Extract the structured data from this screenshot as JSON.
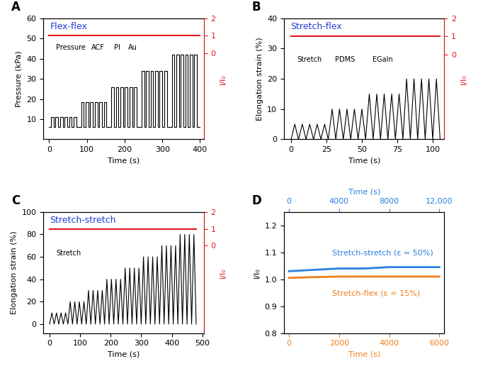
{
  "chart_data": [
    {
      "type": "line",
      "label": "A",
      "title": "Flex-flex",
      "annotations": [
        "Pressure",
        "ACF",
        "PI",
        "Au"
      ],
      "xlabel": "Time (s)",
      "ylabel": "Pressure (kPa)",
      "y2label": "I/I₀",
      "xlim": [
        -15,
        410
      ],
      "xticks": [
        0,
        100,
        200,
        300,
        400
      ],
      "ylim": [
        0,
        60
      ],
      "yticks": [
        10,
        20,
        30,
        40,
        50,
        60
      ],
      "y2lim": [
        -5,
        2
      ],
      "y2ticks": [
        0,
        1,
        2
      ],
      "series": [
        {
          "color": "#000000",
          "x": [
            0,
            5,
            5,
            12,
            12,
            17,
            17,
            24,
            24,
            29,
            29,
            36,
            36,
            41,
            41,
            48,
            48,
            53,
            53,
            60,
            60,
            65,
            65,
            72,
            72,
            85,
            85,
            92,
            92,
            97,
            97,
            104,
            104,
            109,
            109,
            116,
            116,
            121,
            121,
            128,
            128,
            133,
            133,
            140,
            140,
            145,
            145,
            152,
            152,
            165,
            165,
            172,
            172,
            177,
            177,
            184,
            184,
            189,
            189,
            196,
            196,
            201,
            201,
            208,
            208,
            213,
            213,
            220,
            220,
            225,
            225,
            232,
            232,
            245,
            245,
            252,
            252,
            257,
            257,
            264,
            264,
            269,
            269,
            276,
            276,
            281,
            281,
            288,
            288,
            293,
            293,
            300,
            300,
            305,
            305,
            312,
            312,
            325,
            325,
            332,
            332,
            337,
            337,
            344,
            344,
            349,
            349,
            356,
            356,
            361,
            361,
            368,
            368,
            373,
            373,
            380,
            380,
            385,
            385,
            392,
            392,
            400
          ],
          "values": [
            6,
            6,
            11,
            11,
            6,
            6,
            11,
            11,
            6,
            6,
            11,
            11,
            6,
            6,
            11,
            11,
            6,
            6,
            11,
            11,
            6,
            6,
            11,
            11,
            6,
            6,
            18.5,
            18.5,
            6,
            6,
            18.5,
            18.5,
            6,
            6,
            18.5,
            18.5,
            6,
            6,
            18.5,
            18.5,
            6,
            6,
            18.5,
            18.5,
            6,
            6,
            18.5,
            18.5,
            6,
            6,
            26,
            26,
            6,
            6,
            26,
            26,
            6,
            6,
            26,
            26,
            6,
            6,
            26,
            26,
            6,
            6,
            26,
            26,
            6,
            6,
            26,
            26,
            6,
            6,
            34,
            34,
            6,
            6,
            34,
            34,
            6,
            6,
            34,
            34,
            6,
            6,
            34,
            34,
            6,
            6,
            34,
            34,
            6,
            6,
            34,
            34,
            6,
            6,
            42,
            42,
            6,
            6,
            42,
            42,
            6,
            6,
            42,
            42,
            6,
            6,
            42,
            42,
            6,
            6,
            42,
            42,
            6,
            6,
            42,
            42,
            6,
            6
          ]
        },
        {
          "color": "#e31a1c",
          "axis": "y2",
          "x": [
            0,
            100,
            200,
            300,
            400
          ],
          "values": [
            1.0,
            1.0,
            1.0,
            1.0,
            1.0
          ]
        }
      ]
    },
    {
      "type": "line",
      "label": "B",
      "title": "Stretch-flex",
      "annotations": [
        "Stretch",
        "PDMS",
        "EGaIn"
      ],
      "xlabel": "Time (s)",
      "ylabel": "Elongation strain (%)",
      "y2label": "I/I₀",
      "xlim": [
        -5,
        108
      ],
      "xticks": [
        0,
        25,
        50,
        75,
        100
      ],
      "ylim": [
        0,
        40
      ],
      "yticks": [
        0,
        10,
        20,
        30,
        40
      ],
      "y2lim": [
        -4.7,
        2
      ],
      "y2ticks": [
        0,
        1,
        2
      ],
      "series": [
        {
          "color": "#000000",
          "x": [
            0,
            2.6,
            5.2,
            7.9,
            10.5,
            13.1,
            15.8,
            18.4,
            21,
            23.6,
            26.2,
            28.9,
            31.5,
            34.1,
            36.8,
            39.4,
            42,
            44.6,
            47.2,
            49.9,
            52.5,
            55.1,
            57.8,
            60.4,
            63,
            65.6,
            68.2,
            70.9,
            73.5,
            76.1,
            78.8,
            81.4,
            84,
            86.6,
            89.2,
            91.9,
            94.5,
            97.1,
            99.8,
            102.4,
            105
          ],
          "values": [
            0,
            5,
            0,
            5,
            0,
            5,
            0,
            5,
            0,
            5,
            0,
            10,
            0,
            10,
            0,
            10,
            0,
            10,
            0,
            10,
            0,
            15,
            0,
            15,
            0,
            15,
            0,
            15,
            0,
            15,
            0,
            20,
            0,
            20,
            0,
            20,
            0,
            20,
            0,
            20,
            0
          ]
        },
        {
          "color": "#e31a1c",
          "axis": "y2",
          "x": [
            0,
            25,
            50,
            75,
            105
          ],
          "values": [
            1.0,
            1.0,
            1.0,
            1.0,
            1.0
          ]
        }
      ]
    },
    {
      "type": "line",
      "label": "C",
      "title": "Stretch-stretch",
      "annotations": [
        "Stretch"
      ],
      "xlabel": "Time (s)",
      "ylabel": "Elongation strain (%)",
      "y2label": "I/I₀",
      "xlim": [
        -20,
        505
      ],
      "xticks": [
        0,
        100,
        200,
        300,
        400,
        500
      ],
      "ylim": [
        -8,
        100
      ],
      "yticks": [
        0,
        20,
        40,
        60,
        80,
        100
      ],
      "y2lim": [
        -5.2,
        2
      ],
      "y2ticks": [
        0,
        1,
        2
      ],
      "series": [
        {
          "color": "#000000",
          "x": [
            0,
            7.5,
            15,
            22.5,
            30,
            37.5,
            45,
            52.5,
            60,
            67.5,
            75,
            82.5,
            90,
            97.5,
            105,
            112.5,
            120,
            127.5,
            135,
            142.5,
            150,
            157.5,
            165,
            172.5,
            180,
            187.5,
            195,
            202.5,
            210,
            217.5,
            225,
            232.5,
            240,
            247.5,
            255,
            262.5,
            270,
            277.5,
            285,
            292.5,
            300,
            307.5,
            315,
            322.5,
            330,
            337.5,
            345,
            352.5,
            360,
            367.5,
            375,
            382.5,
            390,
            397.5,
            405,
            412.5,
            420,
            427.5,
            435,
            442.5,
            450,
            457.5,
            465,
            472.5,
            480
          ],
          "values": [
            0,
            10,
            0,
            10,
            0,
            10,
            0,
            10,
            0,
            20,
            0,
            20,
            0,
            20,
            0,
            20,
            0,
            30,
            0,
            30,
            0,
            30,
            0,
            30,
            0,
            40,
            0,
            40,
            0,
            40,
            0,
            40,
            0,
            50,
            0,
            50,
            0,
            50,
            0,
            50,
            0,
            60,
            0,
            60,
            0,
            60,
            0,
            60,
            0,
            70,
            0,
            70,
            0,
            70,
            0,
            70,
            0,
            80,
            0,
            80,
            0,
            80,
            0,
            80,
            0
          ]
        },
        {
          "color": "#e31a1c",
          "axis": "y2",
          "x": [
            0,
            120,
            240,
            360,
            480
          ],
          "values": [
            1.0,
            1.0,
            1.0,
            1.0,
            1.0
          ]
        }
      ]
    },
    {
      "type": "line",
      "label": "D",
      "xlabel": "Time (s)",
      "x2label": "Time (s)",
      "ylabel": "I/I₀",
      "xlim": [
        -200,
        6200
      ],
      "xticks": [
        0,
        2000,
        4000,
        6000
      ],
      "x2lim": [
        -400,
        12400
      ],
      "x2ticks": [
        0,
        4000,
        8000,
        {
          "value": 12000,
          "label": "12,000"
        }
      ],
      "ylim": [
        0.8,
        1.25
      ],
      "yticks": [
        0.8,
        0.9,
        1.0,
        1.1,
        1.2
      ],
      "series": [
        {
          "name": "Stretch-stretch (ε = 50%)",
          "color": "#2a7fe0",
          "axis": "x2",
          "x": [
            0,
            2000,
            4000,
            6000,
            8000,
            10000,
            12000
          ],
          "values": [
            1.03,
            1.035,
            1.04,
            1.04,
            1.045,
            1.045,
            1.045
          ]
        },
        {
          "name": "Stretch-flex (ε = 15%)",
          "color": "#f07f1a",
          "x": [
            0,
            1000,
            2000,
            3000,
            4000,
            5000,
            6000
          ],
          "values": [
            1.005,
            1.008,
            1.01,
            1.01,
            1.01,
            1.01,
            1.01
          ]
        }
      ]
    }
  ]
}
